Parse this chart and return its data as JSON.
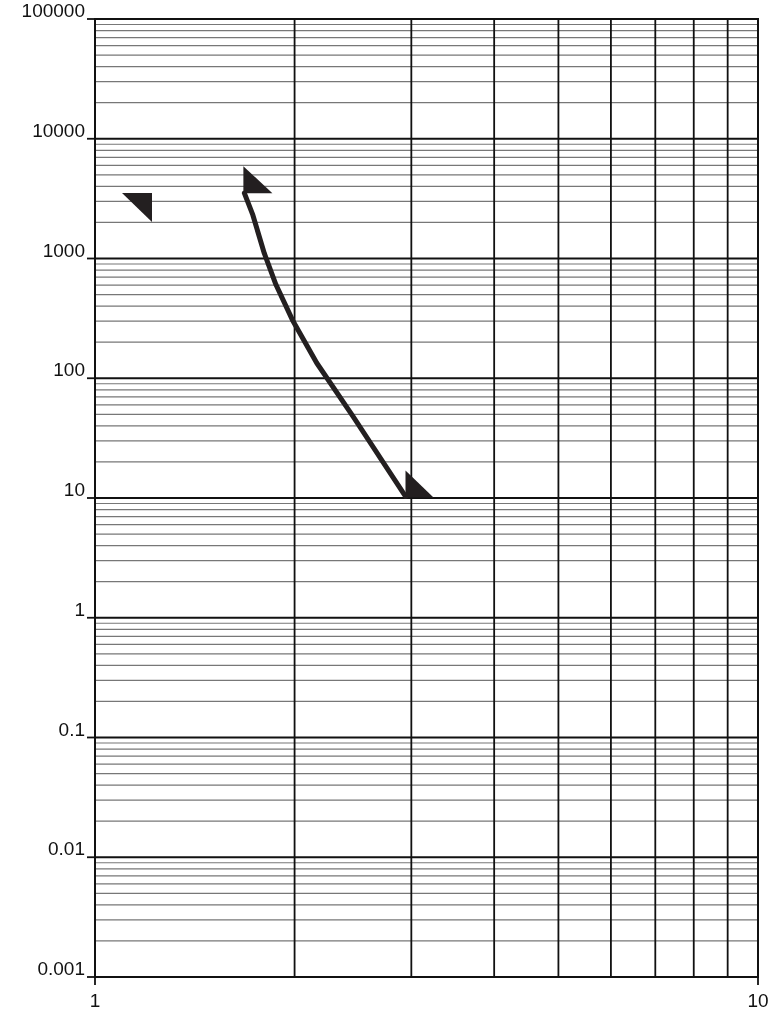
{
  "chart_data": {
    "type": "line",
    "log": "xy",
    "grid": true,
    "marker": "none",
    "line_style": "solid",
    "x": [
      1.68,
      1.73,
      1.8,
      1.875,
      1.985,
      2.16,
      2.45,
      2.94
    ],
    "series": [
      {
        "color": "#231f20",
        "values": [
          3510,
          2310,
          1107,
          603,
          307,
          134,
          48,
          10.3
        ]
      }
    ],
    "xlim": [
      1,
      10
    ],
    "xticks": [
      1,
      {
        "value": 2,
        "label": null
      },
      {
        "value": 3,
        "label": null
      },
      {
        "value": 4,
        "label": null
      },
      {
        "value": 5,
        "label": null
      },
      {
        "value": 6,
        "label": null
      },
      {
        "value": 7,
        "label": null
      },
      {
        "value": 8,
        "label": null
      },
      {
        "value": 9,
        "label": null
      },
      10
    ],
    "ylim": [
      0.001,
      100000
    ],
    "yticks": [
      0.001,
      {
        "value": 0.002,
        "label": null
      },
      {
        "value": 0.003,
        "label": null
      },
      {
        "value": 0.004,
        "label": null
      },
      {
        "value": 0.005,
        "label": null
      },
      {
        "value": 0.006,
        "label": null
      },
      {
        "value": 0.007,
        "label": null
      },
      {
        "value": 0.008,
        "label": null
      },
      {
        "value": 0.009,
        "label": null
      },
      0.01,
      {
        "value": 0.02,
        "label": null
      },
      {
        "value": 0.03,
        "label": null
      },
      {
        "value": 0.04,
        "label": null
      },
      {
        "value": 0.05,
        "label": null
      },
      {
        "value": 0.06,
        "label": null
      },
      {
        "value": 0.07,
        "label": null
      },
      {
        "value": 0.08,
        "label": null
      },
      {
        "value": 0.09,
        "label": null
      },
      0.1,
      {
        "value": 0.2,
        "label": null
      },
      {
        "value": 0.3,
        "label": null
      },
      {
        "value": 0.4,
        "label": null
      },
      {
        "value": 0.5,
        "label": null
      },
      {
        "value": 0.6,
        "label": null
      },
      {
        "value": 0.7,
        "label": null
      },
      {
        "value": 0.8,
        "label": null
      },
      {
        "value": 0.9,
        "label": null
      },
      1,
      {
        "value": 2,
        "label": null
      },
      {
        "value": 3,
        "label": null
      },
      {
        "value": 4,
        "label": null
      },
      {
        "value": 5,
        "label": null
      },
      {
        "value": 6,
        "label": null
      },
      {
        "value": 7,
        "label": null
      },
      {
        "value": 8,
        "label": null
      },
      {
        "value": 9,
        "label": null
      },
      10,
      {
        "value": 20,
        "label": null
      },
      {
        "value": 30,
        "label": null
      },
      {
        "value": 40,
        "label": null
      },
      {
        "value": 50,
        "label": null
      },
      {
        "value": 60,
        "label": null
      },
      {
        "value": 70,
        "label": null
      },
      {
        "value": 80,
        "label": null
      },
      {
        "value": 90,
        "label": null
      },
      100,
      {
        "value": 200,
        "label": null
      },
      {
        "value": 300,
        "label": null
      },
      {
        "value": 400,
        "label": null
      },
      {
        "value": 500,
        "label": null
      },
      {
        "value": 600,
        "label": null
      },
      {
        "value": 700,
        "label": null
      },
      {
        "value": 800,
        "label": null
      },
      {
        "value": 900,
        "label": null
      },
      1000,
      {
        "value": 2000,
        "label": null
      },
      {
        "value": 3000,
        "label": null
      },
      {
        "value": 4000,
        "label": null
      },
      {
        "value": 5000,
        "label": null
      },
      {
        "value": 6000,
        "label": null
      },
      {
        "value": 7000,
        "label": null
      },
      {
        "value": 8000,
        "label": null
      },
      {
        "value": 9000,
        "label": null
      },
      10000,
      {
        "value": 20000,
        "label": null
      },
      {
        "value": 30000,
        "label": null
      },
      {
        "value": 40000,
        "label": null
      },
      {
        "value": 50000,
        "label": null
      },
      {
        "value": 60000,
        "label": null
      },
      {
        "value": 70000,
        "label": null
      },
      {
        "value": 80000,
        "label": null
      },
      {
        "value": 90000,
        "label": null
      },
      100000
    ]
  }
}
